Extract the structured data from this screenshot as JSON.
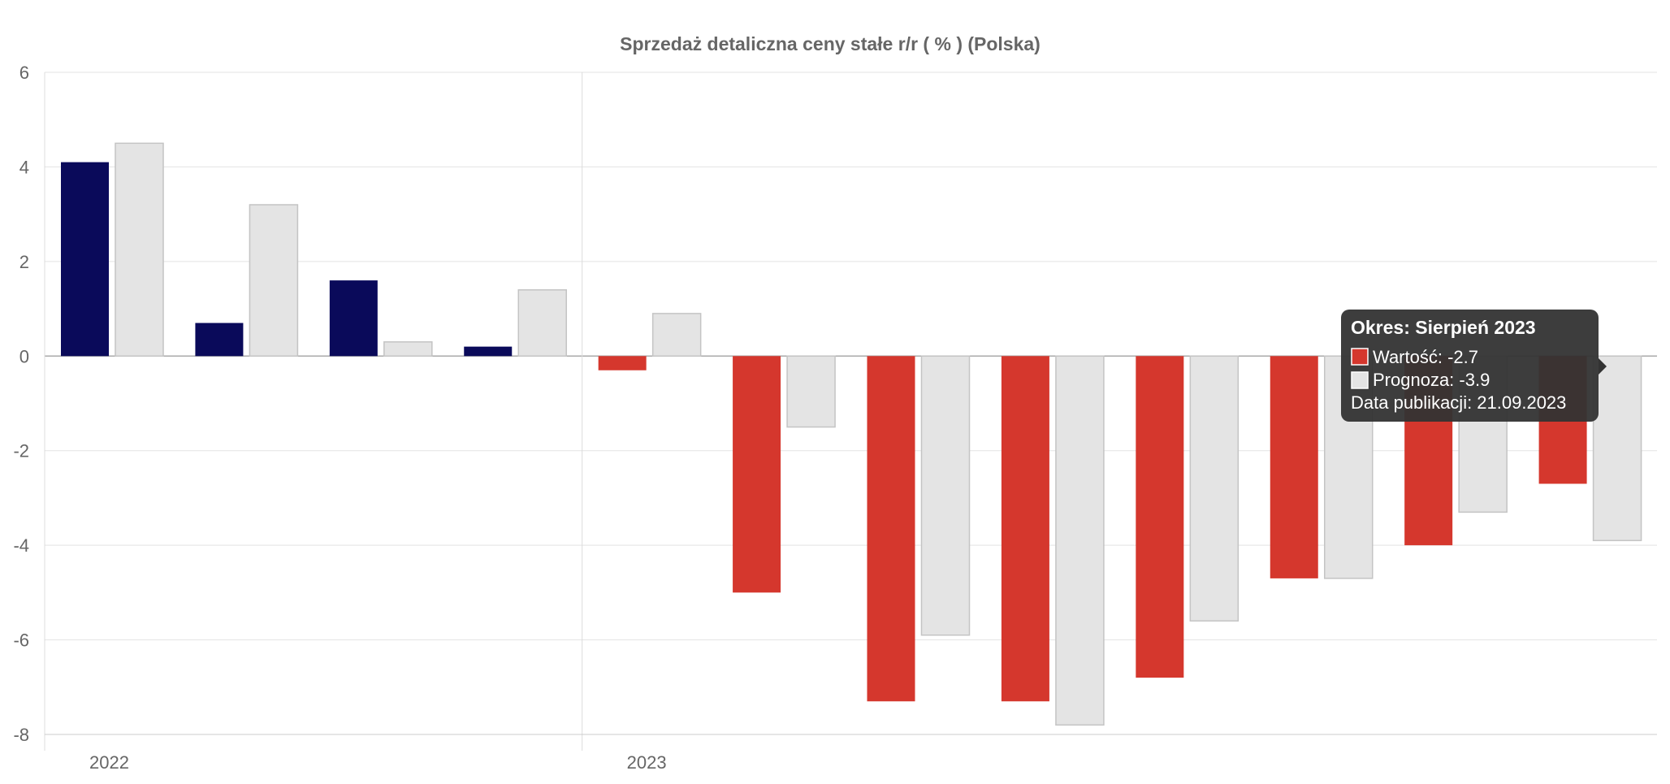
{
  "chart_data": {
    "type": "bar",
    "title": "Sprzedaż detaliczna ceny stałe r/r ( % ) (Polska)",
    "xlabel": "",
    "ylabel": "",
    "ylim": [
      -8,
      6
    ],
    "y_ticks": [
      6,
      4,
      2,
      0,
      -2,
      -4,
      -6,
      -8
    ],
    "grid": true,
    "year_labels": [
      {
        "label": "2022",
        "first_index": 0
      },
      {
        "label": "2023",
        "first_index": 4
      }
    ],
    "series": [
      {
        "name": "Wartość",
        "values": [
          4.1,
          0.7,
          1.6,
          0.2,
          -0.3,
          -5.0,
          -7.3,
          -7.3,
          -6.8,
          -4.7,
          -4.0,
          -2.7
        ],
        "colors_by_sign": {
          "positive": "#0a0a5a",
          "negative": "#d5372d"
        }
      },
      {
        "name": "Prognoza",
        "values": [
          4.5,
          3.2,
          0.3,
          1.4,
          0.9,
          -1.5,
          -5.9,
          -7.8,
          -5.6,
          -4.7,
          -3.3,
          -3.9
        ],
        "color": "#e4e4e4",
        "stroke": "#c4c4c4"
      }
    ],
    "tooltip": {
      "title": "Okres: Sierpień 2023",
      "value_line": "Wartość: -2.7",
      "forecast_line": "Prognoza: -3.9",
      "publication_line": "Data publikacji: 21.09.2023",
      "value_color": "#d5372d",
      "forecast_color": "#e4e4e4",
      "background": "#333333",
      "active_index": 11
    }
  }
}
